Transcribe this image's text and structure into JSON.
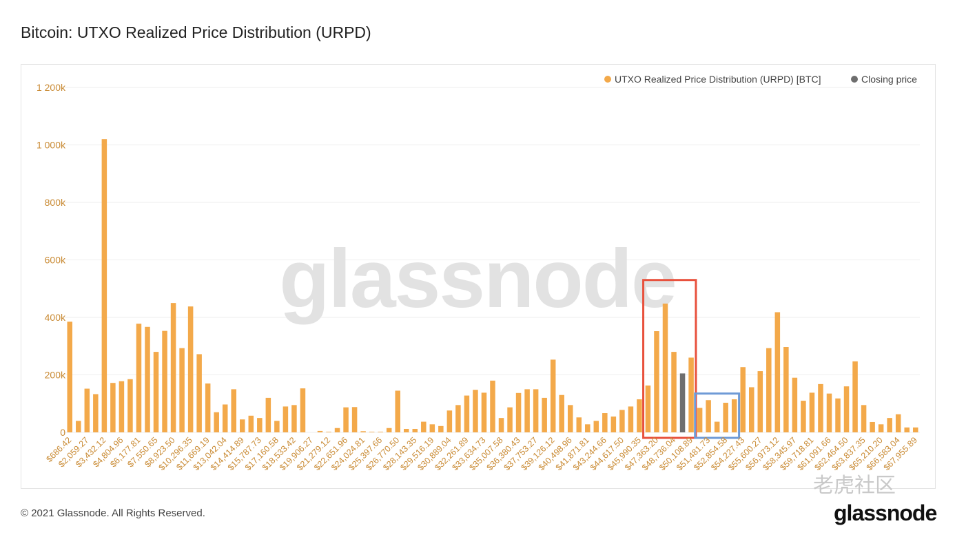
{
  "page": {
    "title": "Bitcoin: UTXO Realized Price Distribution (URPD)",
    "footer": "© 2021 Glassnode. All Rights Reserved.",
    "brand": "glassnode",
    "watermark": "glassnode",
    "corner_watermark": "老虎社区"
  },
  "colors": {
    "bar": "#f3a94a",
    "closing": "#6e6e6e",
    "axis_text": "#c98a33",
    "grid": "#eeeeee",
    "highlight_red": "#e8513d",
    "highlight_blue": "#6f9bd6"
  },
  "chart_data": {
    "type": "bar",
    "legend_position": "top-right",
    "ylim": [
      0,
      1200000
    ],
    "yticks": [
      0,
      200000,
      400000,
      600000,
      800000,
      1000000,
      1200000
    ],
    "ytick_labels": [
      "0",
      "200k",
      "400k",
      "600k",
      "800k",
      "1 000k",
      "1 200k"
    ],
    "series": [
      {
        "name": "UTXO Realized Price Distribution (URPD) [BTC]",
        "values": [
          385000,
          40000,
          152000,
          133000,
          1020000,
          172000,
          178000,
          185000,
          378000,
          367000,
          280000,
          353000,
          450000,
          293000,
          438000,
          272000,
          170000,
          70000,
          97000,
          150000,
          45000,
          58000,
          50000,
          120000,
          40000,
          90000,
          95000,
          153000,
          0,
          5000,
          2000,
          15000,
          87000,
          88000,
          4000,
          2000,
          2000,
          15000,
          145000,
          12000,
          12000,
          37000,
          28000,
          22000,
          76000,
          95000,
          128000,
          148000,
          138000,
          180000,
          50000,
          87000,
          137000,
          150000,
          150000,
          120000,
          253000,
          130000,
          95000,
          52000,
          28000,
          40000,
          67000,
          55000,
          78000,
          90000,
          115000,
          163000,
          352000,
          448000,
          280000,
          0,
          260000,
          85000,
          112000,
          37000,
          103000,
          115000,
          227000,
          157000,
          213000,
          293000,
          418000,
          297000,
          190000,
          110000,
          138000,
          168000,
          135000,
          118000,
          160000,
          247000,
          95000,
          36000,
          28000,
          50000,
          63000,
          17000,
          17000
        ]
      },
      {
        "name": "Closing price",
        "index": 71,
        "value": 205000
      }
    ],
    "x_labels": [
      "$686.42",
      "$2,059.27",
      "$3,432.12",
      "$4,804.96",
      "$6,177.81",
      "$7,550.65",
      "$8,923.50",
      "$10,296.35",
      "$11,669.19",
      "$13,042.04",
      "$14,414.89",
      "$15,787.73",
      "$17,160.58",
      "$18,533.42",
      "$19,906.27",
      "$21,279.12",
      "$22,651.96",
      "$24,024.81",
      "$25,397.66",
      "$26,770.50",
      "$28,143.35",
      "$29,516.19",
      "$30,889.04",
      "$32,261.89",
      "$33,634.73",
      "$35,007.58",
      "$36,380.43",
      "$37,753.27",
      "$39,126.12",
      "$40,498.96",
      "$41,871.81",
      "$43,244.66",
      "$44,617.50",
      "$45,990.35",
      "$47,363.20",
      "$48,736.04",
      "$50,108.89",
      "$51,481.73",
      "$52,854.58",
      "$54,227.43",
      "$55,600.27",
      "$56,973.12",
      "$58,345.97",
      "$59,718.81",
      "$61,091.66",
      "$62,464.50",
      "$63,837.35",
      "$65,210.20",
      "$66,583.04",
      "$67,955.89"
    ],
    "annotations": [
      {
        "shape": "rectangle",
        "color": "red",
        "from_index": 67,
        "to_index": 72,
        "ylim": [
          0,
          530000
        ]
      },
      {
        "shape": "rectangle",
        "color": "blue",
        "from_index": 73,
        "to_index": 77,
        "ylim": [
          0,
          135000
        ]
      }
    ]
  }
}
